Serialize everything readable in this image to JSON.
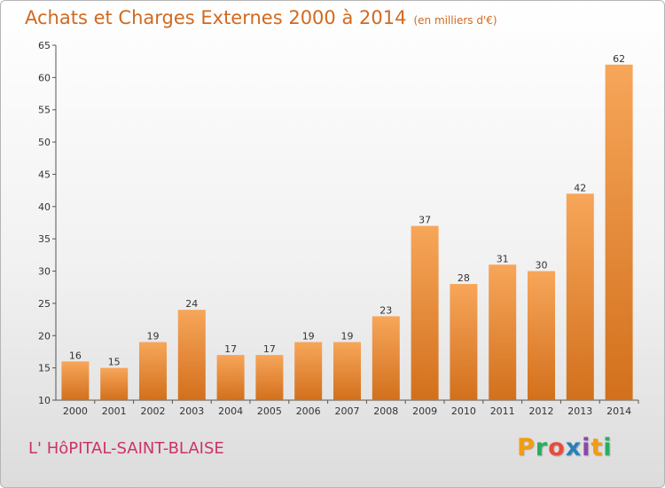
{
  "header": {
    "title": "Achats et Charges Externes 2000 à 2014",
    "subtitle": "(en milliers d'€)"
  },
  "footer": {
    "commune": "L' HôPITAL-SAINT-BLAISE",
    "logo_letters": [
      "P",
      "r",
      "o",
      "x",
      "i",
      "t",
      "i"
    ],
    "logo_colors": [
      "#f39c12",
      "#27ae60",
      "#e74c3c",
      "#2980b9",
      "#8e44ad",
      "#f39c12",
      "#27ae60"
    ]
  },
  "chart_data": {
    "type": "bar",
    "categories": [
      "2000",
      "2001",
      "2002",
      "2003",
      "2004",
      "2005",
      "2006",
      "2007",
      "2008",
      "2009",
      "2010",
      "2011",
      "2012",
      "2013",
      "2014"
    ],
    "values": [
      16,
      15,
      19,
      24,
      17,
      17,
      19,
      19,
      23,
      37,
      28,
      31,
      30,
      42,
      62
    ],
    "ylim": [
      10,
      65
    ],
    "yticks": [
      10,
      15,
      20,
      25,
      30,
      35,
      40,
      45,
      50,
      55,
      60,
      65
    ],
    "bar_color_top": "#f7a65a",
    "bar_color_bottom": "#d2701c",
    "grid": false
  }
}
